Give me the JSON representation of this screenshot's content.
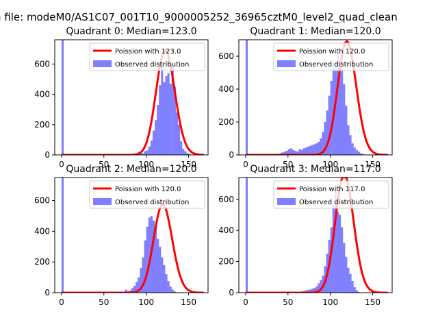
{
  "figure": {
    "suptitle": "n file: modeM0/AS1C07_001T10_9000005252_36965cztM0_level2_quad_clean"
  },
  "chart_data": [
    {
      "type": "bar",
      "title": "Quadrant 0: Median=123.0",
      "xlim": [
        -8,
        173
      ],
      "ylim": [
        0,
        760
      ],
      "xticks": [
        0,
        50,
        100,
        150
      ],
      "yticks": [
        0,
        200,
        400,
        600
      ],
      "legend": [
        "Poission with 123.0",
        "Observed distribution"
      ],
      "legend_position": "upper right",
      "median": 123.0,
      "hist_start": 0,
      "bin_width": 2.5,
      "hist_values": [
        1200,
        0,
        0,
        0,
        0,
        0,
        0,
        0,
        0,
        0,
        0,
        0,
        0,
        0,
        0,
        0,
        0,
        0,
        0,
        0,
        0,
        0,
        0,
        0,
        0,
        0,
        0,
        0,
        0,
        0,
        0,
        0,
        0,
        0,
        5,
        0,
        20,
        15,
        10,
        25,
        30,
        55,
        95,
        160,
        230,
        330,
        460,
        600,
        480,
        520,
        540,
        470,
        590,
        450,
        280,
        200,
        90,
        40,
        25,
        12,
        5,
        2,
        1
      ]
    },
    {
      "type": "bar",
      "title": "Quadrant 1: Median=120.0",
      "xlim": [
        -8,
        173
      ],
      "ylim": [
        0,
        700
      ],
      "xticks": [
        0,
        50,
        100,
        150
      ],
      "yticks": [
        0,
        200,
        400,
        600
      ],
      "legend": [
        "Poission with 120.0",
        "Observed distribution"
      ],
      "legend_position": "upper right",
      "median": 120.0,
      "hist_start": 0,
      "bin_width": 2.5,
      "hist_values": [
        1200,
        0,
        0,
        0,
        0,
        0,
        0,
        0,
        0,
        0,
        0,
        0,
        0,
        0,
        0,
        0,
        10,
        15,
        20,
        25,
        35,
        40,
        30,
        25,
        20,
        35,
        30,
        40,
        45,
        50,
        55,
        60,
        65,
        70,
        80,
        100,
        140,
        200,
        270,
        360,
        450,
        560,
        520,
        600,
        500,
        520,
        430,
        300,
        180,
        120,
        70,
        45,
        30,
        20,
        10,
        5,
        2,
        1
      ]
    },
    {
      "type": "bar",
      "title": "Quadrant 2: Median=120.0",
      "xlim": [
        -8,
        173
      ],
      "ylim": [
        0,
        750
      ],
      "xticks": [
        0,
        50,
        100,
        150
      ],
      "yticks": [
        0,
        200,
        400,
        600
      ],
      "legend": [
        "Poission with 120.0",
        "Observed distribution"
      ],
      "legend_position": "upper right",
      "median": 120.0,
      "hist_start": 0,
      "bin_width": 2.5,
      "hist_values": [
        1200,
        0,
        0,
        0,
        0,
        0,
        0,
        0,
        0,
        0,
        0,
        0,
        0,
        0,
        0,
        0,
        0,
        0,
        0,
        0,
        0,
        0,
        0,
        0,
        0,
        0,
        0,
        0,
        0,
        5,
        20,
        10,
        15,
        30,
        45,
        70,
        100,
        160,
        230,
        340,
        430,
        490,
        500,
        470,
        440,
        350,
        300,
        230,
        180,
        120,
        75,
        40,
        20,
        8,
        3
      ]
    },
    {
      "type": "bar",
      "title": "Quadrant 3: Median=117.0",
      "xlim": [
        -8,
        173
      ],
      "ylim": [
        0,
        740
      ],
      "xticks": [
        0,
        50,
        100,
        150
      ],
      "yticks": [
        0,
        200,
        400,
        600
      ],
      "legend": [
        "Poission with 117.0",
        "Observed distribution"
      ],
      "legend_position": "upper right",
      "median": 117.0,
      "hist_start": 0,
      "bin_width": 2.5,
      "hist_values": [
        1200,
        0,
        0,
        0,
        0,
        0,
        0,
        0,
        0,
        0,
        0,
        0,
        0,
        0,
        0,
        0,
        0,
        0,
        0,
        0,
        0,
        0,
        0,
        0,
        0,
        0,
        8,
        10,
        15,
        18,
        20,
        25,
        30,
        40,
        60,
        80,
        110,
        170,
        250,
        340,
        420,
        560,
        660,
        520,
        500,
        420,
        320,
        230,
        160,
        120,
        75,
        35,
        15,
        5,
        2
      ]
    }
  ]
}
